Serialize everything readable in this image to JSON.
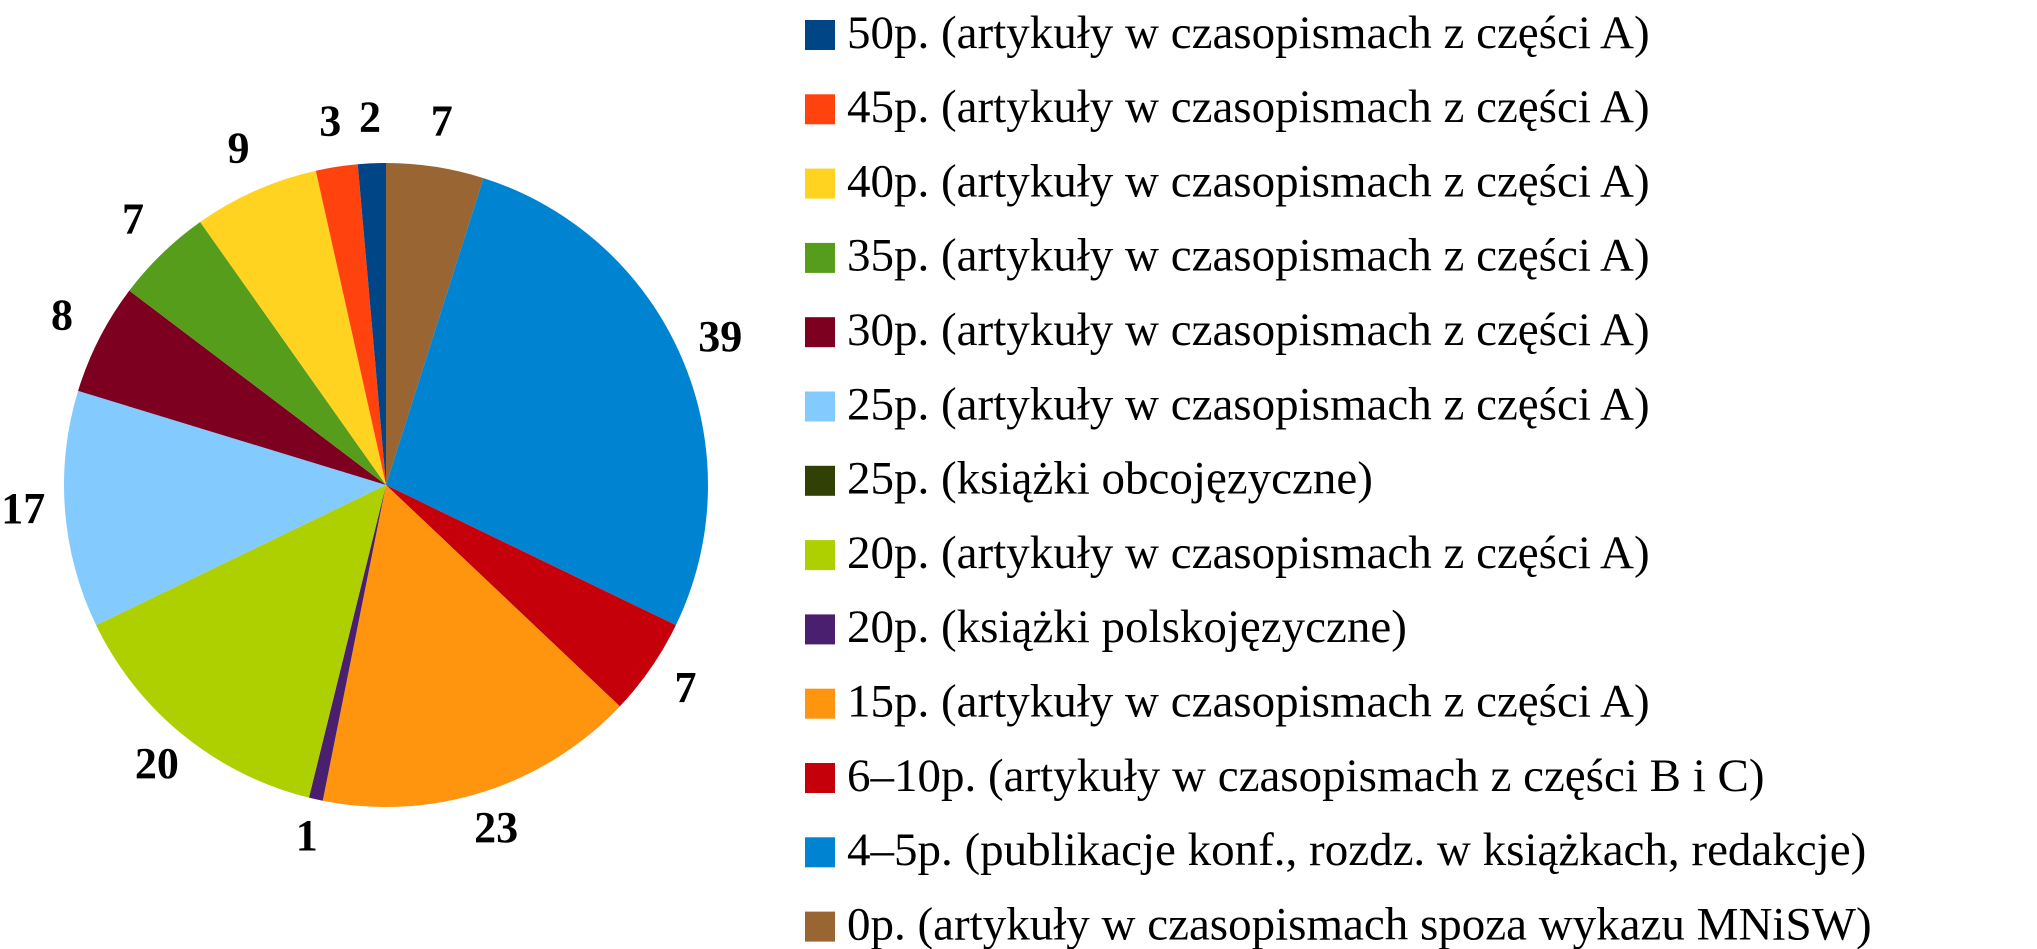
{
  "chart_data": {
    "type": "pie",
    "categories": [
      "50p. (artykuły w czasopismach z części A)",
      "45p. (artykuły w czasopismach z części A)",
      "40p. (artykuły w czasopismach z części A)",
      "35p. (artykuły w czasopismach z części A)",
      "30p. (artykuły w czasopismach z części A)",
      "25p. (artykuły w czasopismach z części A)",
      "25p. (książki obcojęzyczne)",
      "20p. (artykuły w czasopismach z części A)",
      "20p. (książki polskojęzyczne)",
      "15p. (artykuły w czasopismach z części A)",
      "6–10p. (artykuły w czasopismach z części B i C)",
      "4–5p. (publikacje konf., rozdz. w książkach, redakcje)",
      "0p. (artykuły w czasopismach spoza wykazu MNiSW)"
    ],
    "values": [
      2,
      3,
      9,
      7,
      8,
      17,
      0,
      20,
      1,
      23,
      7,
      39,
      7
    ],
    "colors": [
      "#004586",
      "#ff420e",
      "#ffd320",
      "#579d1c",
      "#7e0021",
      "#83caff",
      "#314004",
      "#aecf00",
      "#4b1f6f",
      "#ff950e",
      "#c5000b",
      "#0084d1",
      "#996633"
    ],
    "legend": "right"
  }
}
